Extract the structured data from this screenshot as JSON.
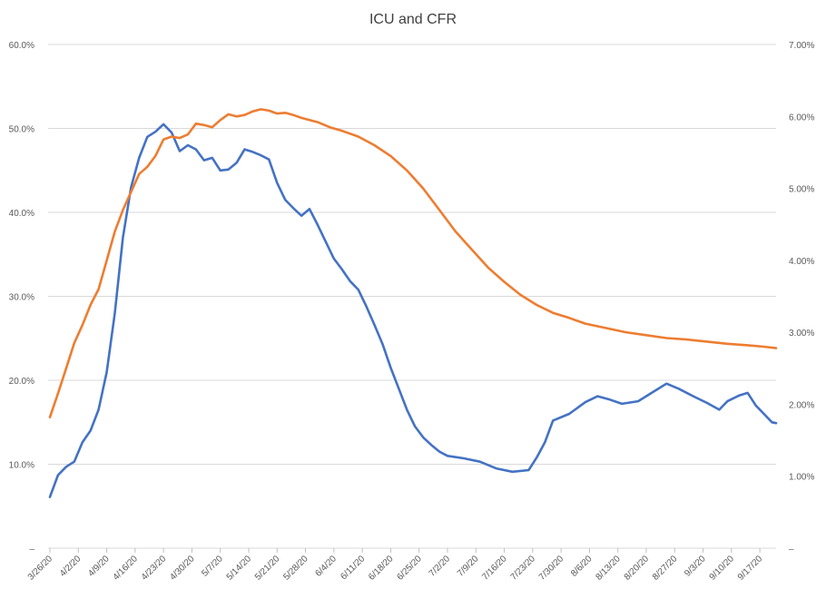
{
  "chart_data": {
    "type": "line",
    "title": "ICU and CFR",
    "grid": true,
    "legend": "none",
    "y_left": {
      "ticks": [
        0,
        10,
        20,
        30,
        40,
        50,
        60
      ],
      "tick_labels": [
        "–",
        "10.0%",
        "20.0%",
        "30.0%",
        "40.0%",
        "50.0%",
        "60.0%"
      ],
      "range": [
        0,
        60
      ]
    },
    "y_right": {
      "ticks": [
        0,
        1,
        2,
        3,
        4,
        5,
        6,
        7
      ],
      "tick_labels": [
        "–",
        "1.00%",
        "2.00%",
        "3.00%",
        "4.00%",
        "5.00%",
        "6.00%",
        "7.00%"
      ],
      "range": [
        0,
        7
      ]
    },
    "x_tick_labels": [
      "3/26/20",
      "4/2/20",
      "4/9/20",
      "4/16/20",
      "4/23/20",
      "4/30/20",
      "5/7/20",
      "5/14/20",
      "5/21/20",
      "5/28/20",
      "6/4/20",
      "6/11/20",
      "6/18/20",
      "6/25/20",
      "7/2/20",
      "7/9/20",
      "7/16/20",
      "7/23/20",
      "7/30/20",
      "8/6/20",
      "8/13/20",
      "8/20/20",
      "8/27/20",
      "9/3/20",
      "9/10/20",
      "9/17/20"
    ],
    "x_range": [
      "3/26/20",
      "9/21/20"
    ],
    "series": [
      {
        "axis": "left",
        "color": "#4472C4",
        "points": [
          [
            "3/26/20",
            6.1
          ],
          [
            "3/28/20",
            8.7
          ],
          [
            "3/30/20",
            9.7
          ],
          [
            "4/1/20",
            10.3
          ],
          [
            "4/3/20",
            12.6
          ],
          [
            "4/5/20",
            14.0
          ],
          [
            "4/7/20",
            16.5
          ],
          [
            "4/9/20",
            21.0
          ],
          [
            "4/11/20",
            28.0
          ],
          [
            "4/13/20",
            37.0
          ],
          [
            "4/15/20",
            43.0
          ],
          [
            "4/17/20",
            46.5
          ],
          [
            "4/19/20",
            49.0
          ],
          [
            "4/21/20",
            49.6
          ],
          [
            "4/23/20",
            50.5
          ],
          [
            "4/25/20",
            49.5
          ],
          [
            "4/27/20",
            47.3
          ],
          [
            "4/29/20",
            48.0
          ],
          [
            "5/1/20",
            47.5
          ],
          [
            "5/3/20",
            46.2
          ],
          [
            "5/5/20",
            46.5
          ],
          [
            "5/7/20",
            45.0
          ],
          [
            "5/9/20",
            45.1
          ],
          [
            "5/11/20",
            45.9
          ],
          [
            "5/13/20",
            47.5
          ],
          [
            "5/15/20",
            47.2
          ],
          [
            "5/17/20",
            46.8
          ],
          [
            "5/19/20",
            46.3
          ],
          [
            "5/21/20",
            43.5
          ],
          [
            "5/23/20",
            41.5
          ],
          [
            "5/25/20",
            40.5
          ],
          [
            "5/27/20",
            39.6
          ],
          [
            "5/29/20",
            40.4
          ],
          [
            "5/31/20",
            38.5
          ],
          [
            "6/2/20",
            36.5
          ],
          [
            "6/4/20",
            34.5
          ],
          [
            "6/6/20",
            33.2
          ],
          [
            "6/8/20",
            31.8
          ],
          [
            "6/10/20",
            30.8
          ],
          [
            "6/12/20",
            28.8
          ],
          [
            "6/14/20",
            26.6
          ],
          [
            "6/16/20",
            24.3
          ],
          [
            "6/18/20",
            21.5
          ],
          [
            "6/20/20",
            19.0
          ],
          [
            "6/22/20",
            16.5
          ],
          [
            "6/24/20",
            14.5
          ],
          [
            "6/26/20",
            13.2
          ],
          [
            "6/28/20",
            12.3
          ],
          [
            "6/30/20",
            11.5
          ],
          [
            "7/2/20",
            11.0
          ],
          [
            "7/6/20",
            10.7
          ],
          [
            "7/10/20",
            10.3
          ],
          [
            "7/14/20",
            9.5
          ],
          [
            "7/18/20",
            9.1
          ],
          [
            "7/22/20",
            9.3
          ],
          [
            "7/24/20",
            10.8
          ],
          [
            "7/26/20",
            12.6
          ],
          [
            "7/28/20",
            15.2
          ],
          [
            "8/1/20",
            16.0
          ],
          [
            "8/5/20",
            17.4
          ],
          [
            "8/8/20",
            18.1
          ],
          [
            "8/11/20",
            17.7
          ],
          [
            "8/14/20",
            17.2
          ],
          [
            "8/18/20",
            17.5
          ],
          [
            "8/22/20",
            18.7
          ],
          [
            "8/25/20",
            19.6
          ],
          [
            "8/28/20",
            19.0
          ],
          [
            "9/1/20",
            18.0
          ],
          [
            "9/4/20",
            17.3
          ],
          [
            "9/7/20",
            16.5
          ],
          [
            "9/9/20",
            17.5
          ],
          [
            "9/12/20",
            18.2
          ],
          [
            "9/14/20",
            18.5
          ],
          [
            "9/16/20",
            17.0
          ],
          [
            "9/18/20",
            16.0
          ],
          [
            "9/20/20",
            15.0
          ],
          [
            "9/21/20",
            14.9
          ]
        ]
      },
      {
        "axis": "right",
        "color": "#ED7D31",
        "points": [
          [
            "3/26/20",
            1.82
          ],
          [
            "3/28/20",
            2.15
          ],
          [
            "3/30/20",
            2.5
          ],
          [
            "4/1/20",
            2.85
          ],
          [
            "4/3/20",
            3.1
          ],
          [
            "4/5/20",
            3.38
          ],
          [
            "4/7/20",
            3.6
          ],
          [
            "4/9/20",
            4.0
          ],
          [
            "4/11/20",
            4.4
          ],
          [
            "4/13/20",
            4.7
          ],
          [
            "4/15/20",
            4.95
          ],
          [
            "4/17/20",
            5.2
          ],
          [
            "4/19/20",
            5.3
          ],
          [
            "4/21/20",
            5.45
          ],
          [
            "4/23/20",
            5.68
          ],
          [
            "4/25/20",
            5.72
          ],
          [
            "4/27/20",
            5.7
          ],
          [
            "4/29/20",
            5.75
          ],
          [
            "5/1/20",
            5.9
          ],
          [
            "5/3/20",
            5.88
          ],
          [
            "5/5/20",
            5.85
          ],
          [
            "5/7/20",
            5.95
          ],
          [
            "5/9/20",
            6.03
          ],
          [
            "5/11/20",
            6.0
          ],
          [
            "5/13/20",
            6.02
          ],
          [
            "5/15/20",
            6.07
          ],
          [
            "5/17/20",
            6.1
          ],
          [
            "5/19/20",
            6.08
          ],
          [
            "5/21/20",
            6.04
          ],
          [
            "5/23/20",
            6.05
          ],
          [
            "5/25/20",
            6.02
          ],
          [
            "5/27/20",
            5.98
          ],
          [
            "5/29/20",
            5.95
          ],
          [
            "5/31/20",
            5.92
          ],
          [
            "6/3/20",
            5.85
          ],
          [
            "6/6/20",
            5.8
          ],
          [
            "6/10/20",
            5.72
          ],
          [
            "6/14/20",
            5.6
          ],
          [
            "6/18/20",
            5.45
          ],
          [
            "6/22/20",
            5.25
          ],
          [
            "6/26/20",
            5.0
          ],
          [
            "6/30/20",
            4.7
          ],
          [
            "7/4/20",
            4.4
          ],
          [
            "7/8/20",
            4.15
          ],
          [
            "7/12/20",
            3.9
          ],
          [
            "7/16/20",
            3.7
          ],
          [
            "7/20/20",
            3.52
          ],
          [
            "7/24/20",
            3.38
          ],
          [
            "7/28/20",
            3.27
          ],
          [
            "8/1/20",
            3.2
          ],
          [
            "8/5/20",
            3.12
          ],
          [
            "8/10/20",
            3.06
          ],
          [
            "8/15/20",
            3.0
          ],
          [
            "8/20/20",
            2.96
          ],
          [
            "8/25/20",
            2.92
          ],
          [
            "8/30/20",
            2.9
          ],
          [
            "9/4/20",
            2.87
          ],
          [
            "9/9/20",
            2.84
          ],
          [
            "9/14/20",
            2.82
          ],
          [
            "9/18/20",
            2.8
          ],
          [
            "9/21/20",
            2.78
          ]
        ]
      }
    ]
  }
}
